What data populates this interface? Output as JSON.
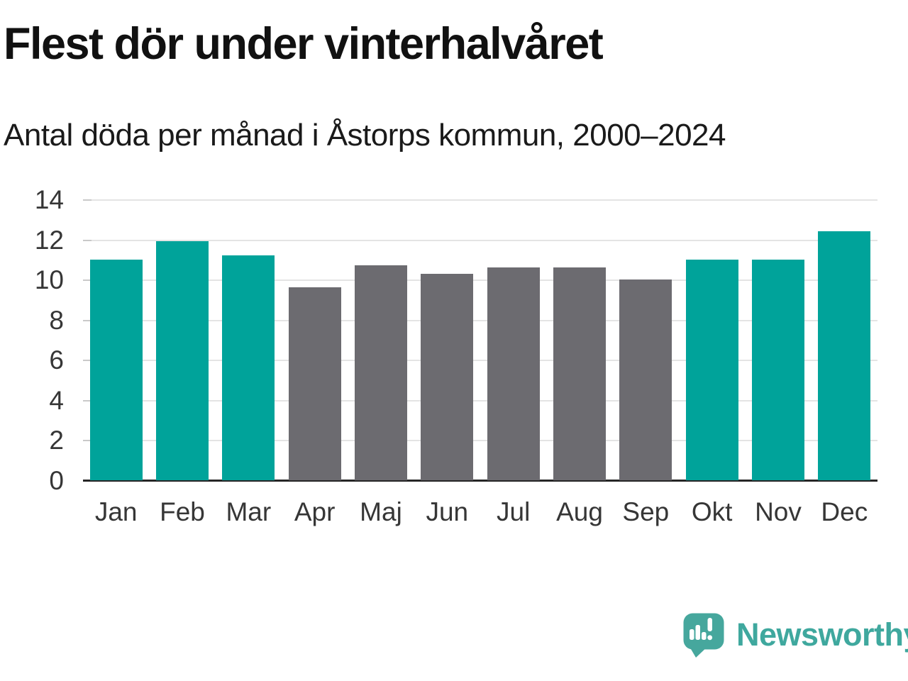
{
  "header": {
    "title": "Flest dör under vinterhalvåret",
    "subtitle": "Antal döda per månad i Åstorps kommun, 2000–2024"
  },
  "chart_data": {
    "type": "bar",
    "title": "Flest dör under vinterhalvåret",
    "subtitle": "Antal döda per månad i Åstorps kommun, 2000–2024",
    "categories": [
      "Jan",
      "Feb",
      "Mar",
      "Apr",
      "Maj",
      "Jun",
      "Jul",
      "Aug",
      "Sep",
      "Okt",
      "Nov",
      "Dec"
    ],
    "values": [
      11.0,
      11.9,
      11.2,
      9.6,
      10.7,
      10.3,
      10.6,
      10.6,
      10.0,
      11.0,
      11.0,
      12.4
    ],
    "bar_season": [
      "winter",
      "winter",
      "winter",
      "summer",
      "summer",
      "summer",
      "summer",
      "summer",
      "summer",
      "winter",
      "winter",
      "winter"
    ],
    "palette": {
      "winter": "#00a39a",
      "summer": "#6c6b70"
    },
    "xlabel": "",
    "ylabel": "",
    "ylim": [
      0,
      14
    ],
    "yticks": [
      14,
      12,
      10,
      8,
      6,
      4,
      2,
      0
    ],
    "grid": "horizontal",
    "legend": "none"
  },
  "axis_style": {
    "gridline_color": "#e4e4e4",
    "tick_color": "#c9c9c9",
    "baseline_color": "#262626",
    "label_color": "#363636"
  },
  "footer": {
    "brand": "Newsworthy",
    "brand_color": "#3fa89e",
    "logo_icon": "newsworthy-speech-bubble-barchart-icon"
  }
}
